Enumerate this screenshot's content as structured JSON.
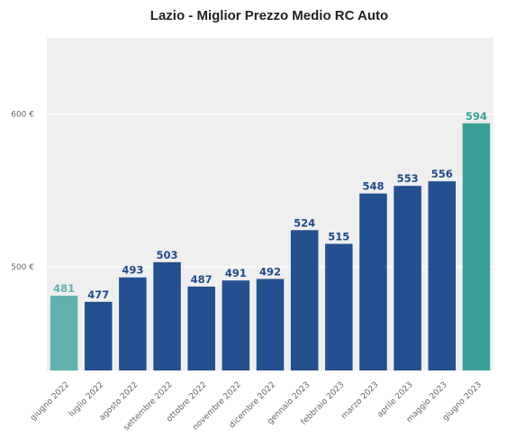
{
  "chart_data": {
    "type": "bar",
    "title": "Lazio - Miglior Prezzo Medio RC Auto",
    "xlabel": "",
    "ylabel": "",
    "ylim": [
      432,
      650
    ],
    "yticks": [
      {
        "value": 500,
        "label": "500 €"
      },
      {
        "value": 600,
        "label": "600 €"
      }
    ],
    "grid": true,
    "legend": "none",
    "categories": [
      "giugno 2022",
      "luglio 2022",
      "agosto 2022",
      "settembre 2022",
      "ottobre 2022",
      "novembre 2022",
      "dicembre 2022",
      "gennaio 2023",
      "febbraio 2023",
      "marzo 2023",
      "aprile 2023",
      "maggio 2023",
      "giugno 2023"
    ],
    "values": [
      481,
      477,
      493,
      503,
      487,
      491,
      492,
      524,
      515,
      548,
      553,
      556,
      594
    ],
    "value_labels": [
      "481",
      "477",
      "493",
      "503",
      "487",
      "491",
      "492",
      "524",
      "515",
      "548",
      "553",
      "556",
      "594"
    ],
    "bar_colors": [
      "#5fb3ae",
      "#24508f",
      "#24508f",
      "#24508f",
      "#24508f",
      "#24508f",
      "#24508f",
      "#24508f",
      "#24508f",
      "#24508f",
      "#24508f",
      "#24508f",
      "#3a9f97"
    ],
    "label_colors": [
      "#5fb3ae",
      "#1f4a8a",
      "#1f4a8a",
      "#1f4a8a",
      "#1f4a8a",
      "#1f4a8a",
      "#1f4a8a",
      "#1f4a8a",
      "#1f4a8a",
      "#1f4a8a",
      "#1f4a8a",
      "#1f4a8a",
      "#3a9f97"
    ],
    "plot_background": "#efefef",
    "gridline_color": "#ffffff"
  }
}
